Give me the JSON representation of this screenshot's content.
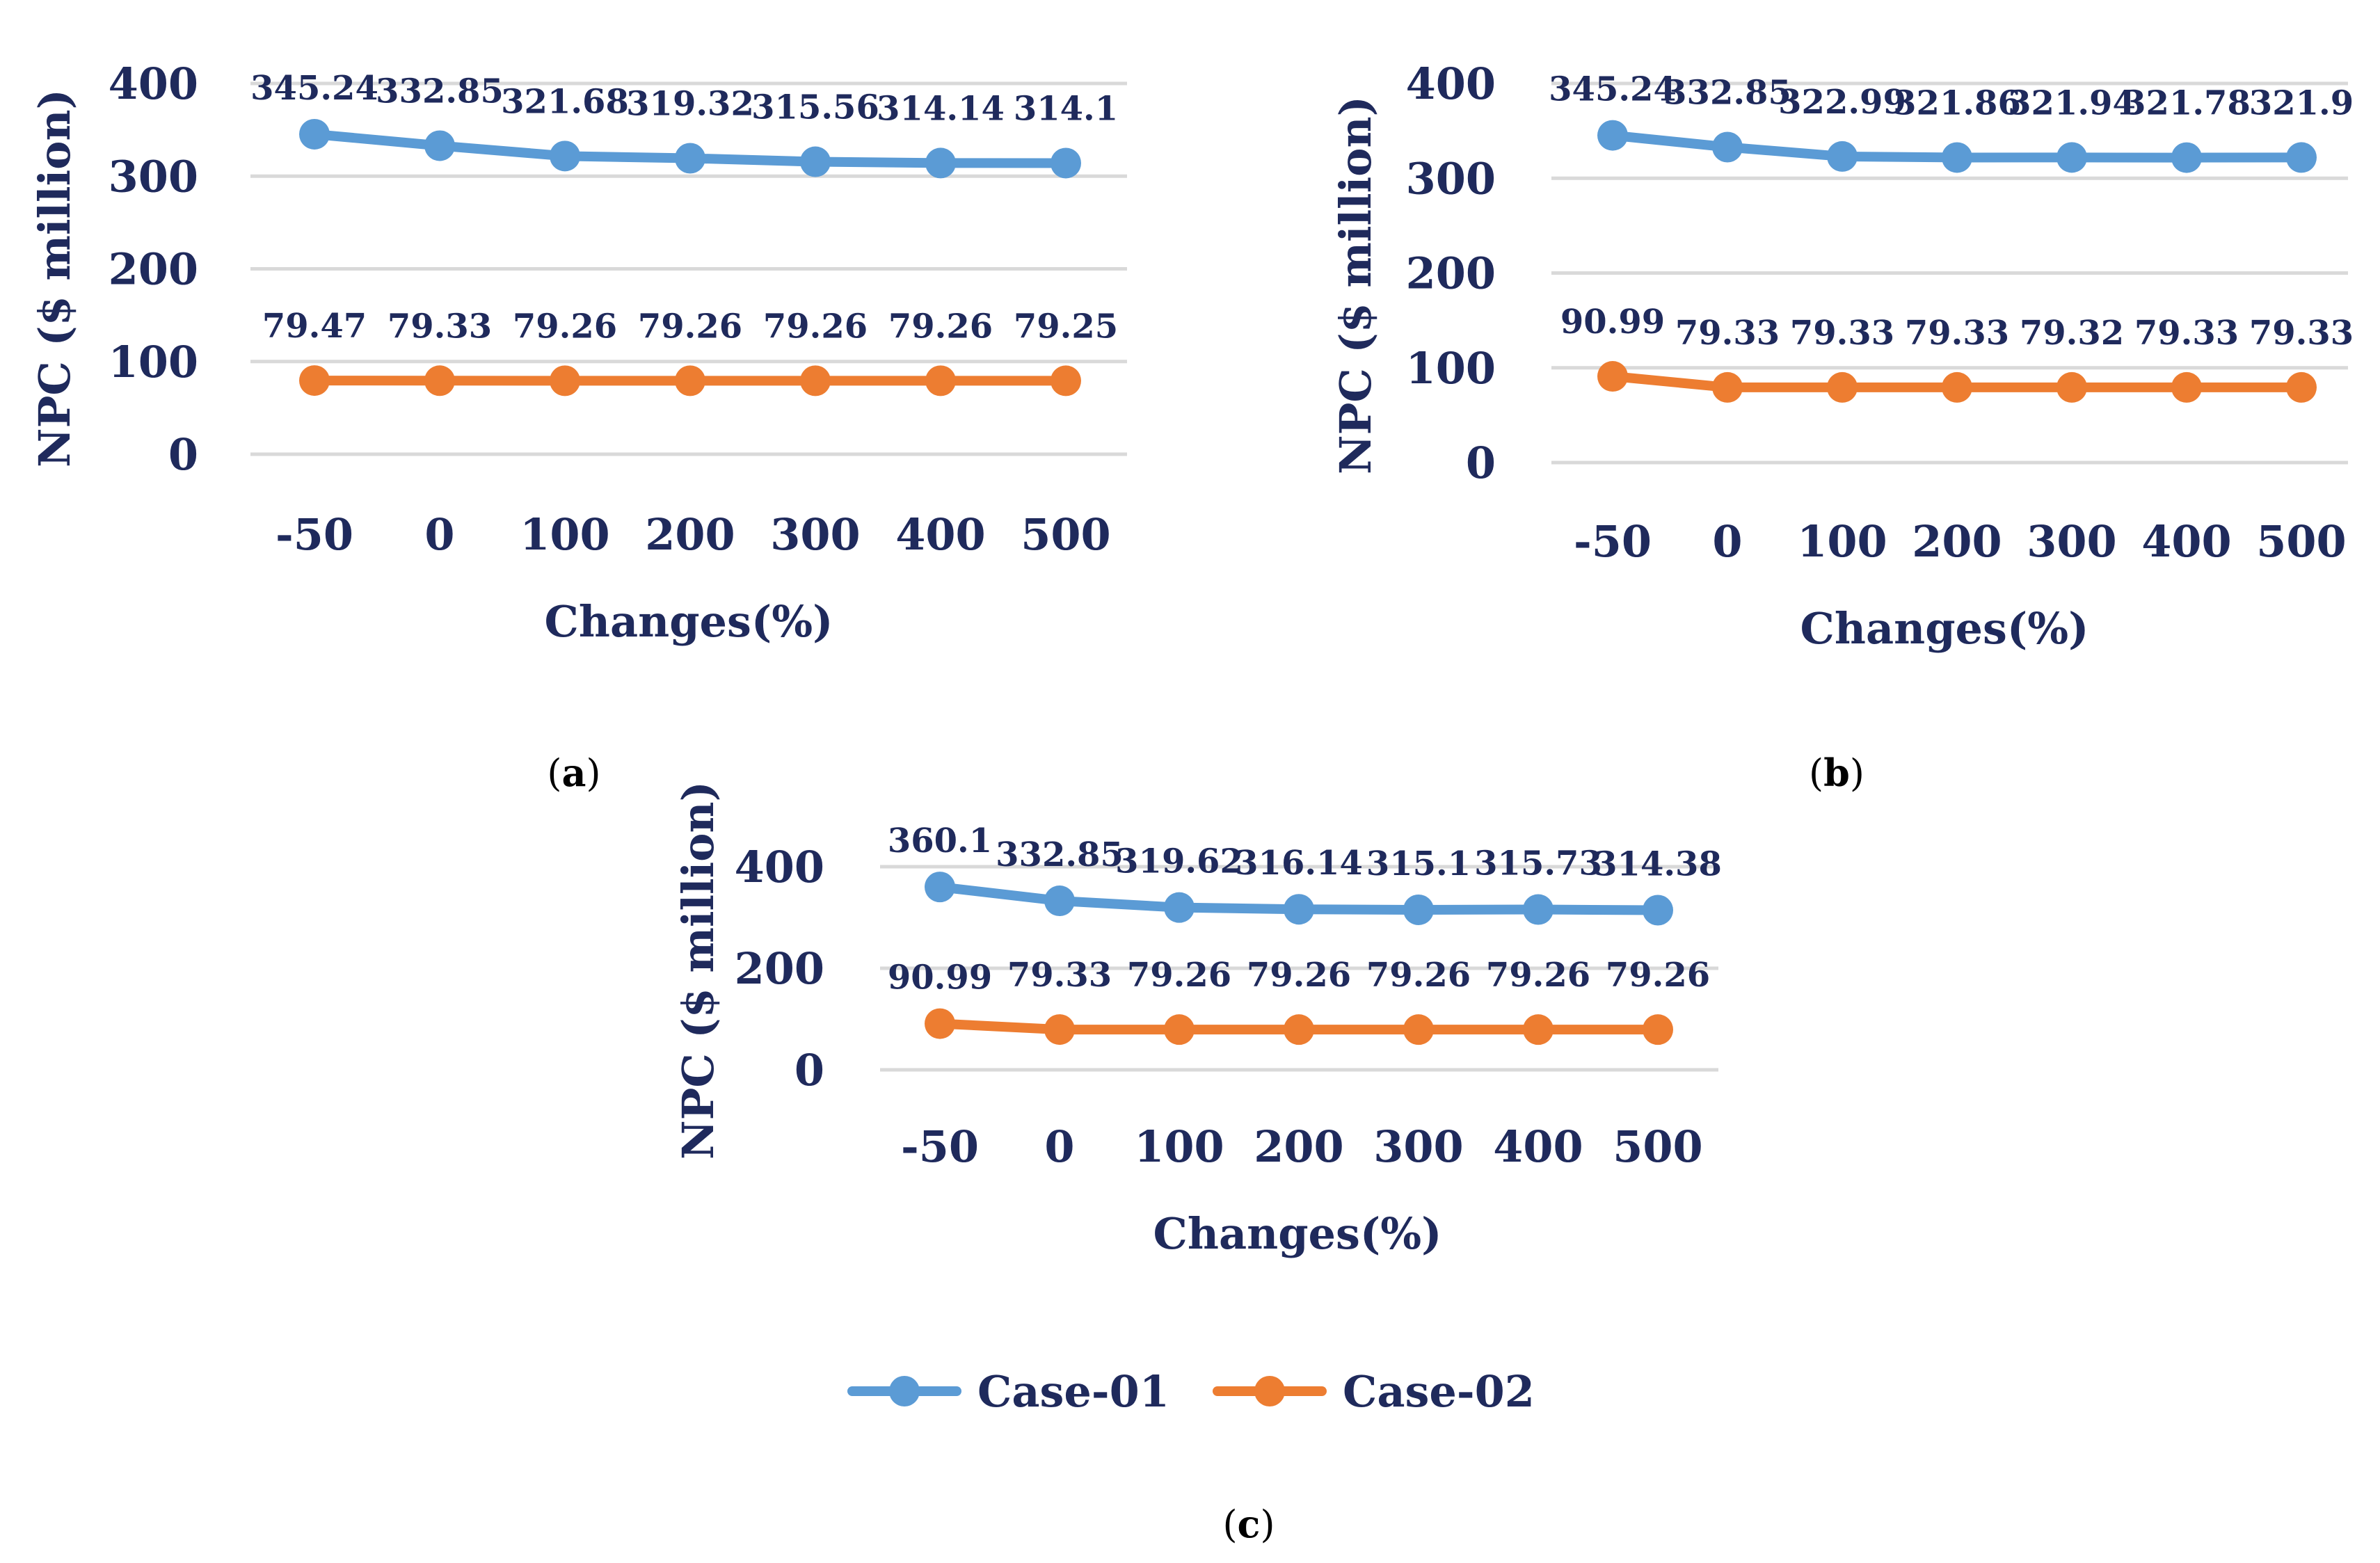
{
  "colors": {
    "text": "#1f2a5c",
    "grid": "#d9d9d9",
    "case01": "#5b9bd5",
    "case02": "#ed7d31"
  },
  "legend": [
    {
      "name": "Case-01",
      "color_key": "case01"
    },
    {
      "name": "Case-02",
      "color_key": "case02"
    }
  ],
  "chart_data": [
    {
      "type": "line",
      "panel": "a",
      "caption_letter": "a",
      "categories": [
        "-50",
        "0",
        "100",
        "200",
        "300",
        "400",
        "500"
      ],
      "xlabel": "Changes(%)",
      "ylabel": "NPC ($ million)",
      "ylim": [
        0,
        400
      ],
      "yticks": [
        0,
        100,
        200,
        300,
        400
      ],
      "grid": true,
      "series": [
        {
          "name": "Case-01",
          "values": [
            345.24,
            332.85,
            321.68,
            319.32,
            315.56,
            314.14,
            314.1
          ],
          "labels": [
            "345.24",
            "332.85",
            "321.68",
            "319.32",
            "315.56",
            "314.14",
            "314.1"
          ]
        },
        {
          "name": "Case-02",
          "values": [
            79.47,
            79.33,
            79.26,
            79.26,
            79.26,
            79.26,
            79.25
          ],
          "labels": [
            "79.47",
            "79.33",
            "79.26",
            "79.26",
            "79.26",
            "79.26",
            "79.25"
          ]
        }
      ]
    },
    {
      "type": "line",
      "panel": "b",
      "caption_letter": "b",
      "categories": [
        "-50",
        "0",
        "100",
        "200",
        "300",
        "400",
        "500"
      ],
      "xlabel": "Changes(%)",
      "ylabel": "NPC ($ million)",
      "ylim": [
        0,
        400
      ],
      "yticks": [
        0,
        100,
        200,
        300,
        400
      ],
      "grid": true,
      "series": [
        {
          "name": "Case-01",
          "values": [
            345.24,
            332.85,
            322.99,
            321.86,
            321.94,
            321.78,
            321.9
          ],
          "labels": [
            "345.24",
            "332.85",
            "322.99",
            "321.86",
            "321.94",
            "321.78",
            "321.9"
          ]
        },
        {
          "name": "Case-02",
          "values": [
            90.99,
            79.33,
            79.33,
            79.33,
            79.32,
            79.33,
            79.33
          ],
          "labels": [
            "90.99",
            "79.33",
            "79.33",
            "79.33",
            "79.32",
            "79.33",
            "79.33"
          ]
        }
      ]
    },
    {
      "type": "line",
      "panel": "c",
      "caption_letter": "c",
      "categories": [
        "-50",
        "0",
        "100",
        "200",
        "300",
        "400",
        "500"
      ],
      "xlabel": "Changes(%)",
      "ylabel": "NPC ($ million)",
      "ylim": [
        0,
        400
      ],
      "yticks": [
        0,
        200,
        400
      ],
      "grid": true,
      "series": [
        {
          "name": "Case-01",
          "values": [
            360.1,
            332.85,
            319.62,
            316.14,
            315.1,
            315.73,
            314.38
          ],
          "labels": [
            "360.1",
            "332.85",
            "319.62",
            "316.14",
            "315.1",
            "315.73",
            "314.38"
          ]
        },
        {
          "name": "Case-02",
          "values": [
            90.99,
            79.33,
            79.26,
            79.26,
            79.26,
            79.26,
            79.26
          ],
          "labels": [
            "90.99",
            "79.33",
            "79.26",
            "79.26",
            "79.26",
            "79.26",
            "79.26"
          ]
        }
      ]
    }
  ]
}
